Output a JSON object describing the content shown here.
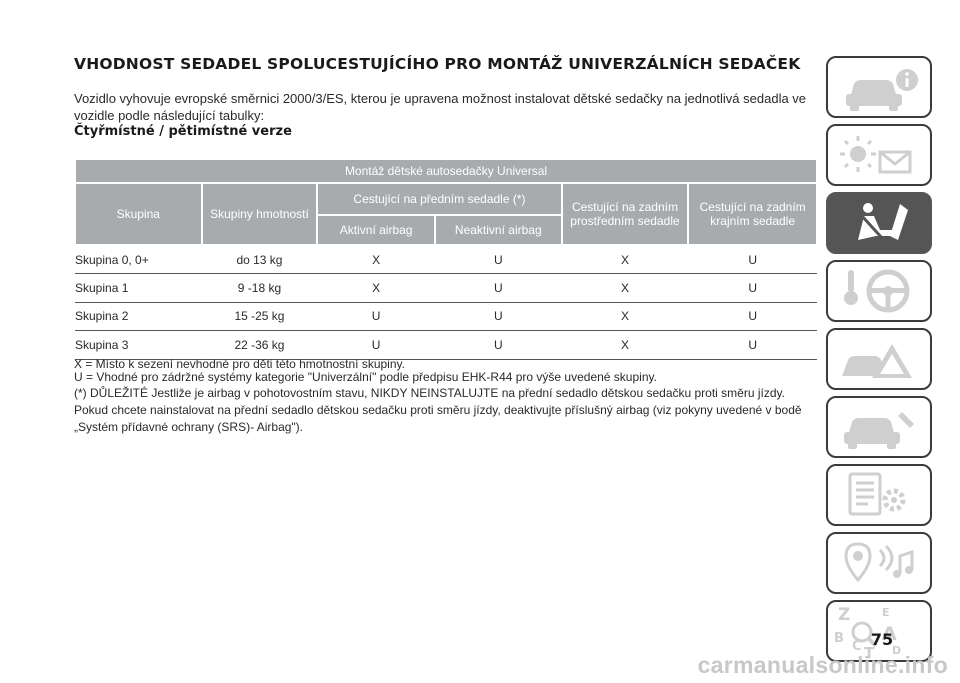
{
  "heading": "VHODNOST SEDADEL SPOLUCESTUJÍCÍHO PRO MONTÁŽ UNIVERZÁLNÍCH SEDAČEK",
  "intro": "Vozidlo vyhovuje evropské směrnici 2000/3/ES, kterou je upravena možnost instalovat dětské sedačky na jednotlivá sedadla ve vozidle podle následující tabulky:",
  "subheading": "Čtyřmístné / pětimístné verze",
  "table": {
    "title": "Montáž dětské autosedačky Universal",
    "col_group": "Skupina",
    "col_weight": "Skupiny hmotností",
    "col_front": "Cestující na předním sedadle (*)",
    "col_front_active": "Aktivní airbag",
    "col_front_inactive": "Neaktivní airbag",
    "col_rear_center": "Cestující na zadním prostředním sedadle",
    "col_rear_side": "Cestující na zadním krajním sedadle",
    "rows": [
      {
        "group": "Skupina 0, 0+",
        "weight": "do 13 kg",
        "front_active": "X",
        "front_inactive": "U",
        "rear_center": "X",
        "rear_side": "U"
      },
      {
        "group": "Skupina 1",
        "weight": "9 -18 kg",
        "front_active": "X",
        "front_inactive": "U",
        "rear_center": "X",
        "rear_side": "U"
      },
      {
        "group": "Skupina 2",
        "weight": "15 -25 kg",
        "front_active": "U",
        "front_inactive": "U",
        "rear_center": "X",
        "rear_side": "U"
      },
      {
        "group": "Skupina 3",
        "weight": "22 -36 kg",
        "front_active": "U",
        "front_inactive": "U",
        "rear_center": "X",
        "rear_side": "U"
      }
    ]
  },
  "notes": {
    "x_note": "X = Místo k sezení nevhodné pro děti této hmotnostní skupiny.",
    "u_note": "U = Vhodné pro zádržné systémy kategorie \"Univerzální\" podle předpisu EHK-R44 pro výše uvedené skupiny.",
    "important": "(*) DŮLEŽITÉ Jestliže je airbag v pohotovostním stavu, NIKDY NEINSTALUJTE na přední sedadlo dětskou sedačku proti směru jízdy. Pokud chcete nainstalovat na přední sedadlo dětskou sedačku proti směru jízdy, deaktivujte příslušný airbag (viz pokyny uvedené v bodě „Systém přídavné ochrany (SRS)- Airbag\")."
  },
  "sidebar": {
    "tabs": [
      {
        "name": "car-info-icon",
        "active": false
      },
      {
        "name": "warning-lights-icon",
        "active": false
      },
      {
        "name": "safety-seatbelt-icon",
        "active": true
      },
      {
        "name": "starting-driving-icon",
        "active": false
      },
      {
        "name": "emergency-icon",
        "active": false
      },
      {
        "name": "maintenance-icon",
        "active": false
      },
      {
        "name": "technical-data-icon",
        "active": false
      },
      {
        "name": "multimedia-icon",
        "active": false
      },
      {
        "name": "index-icon",
        "active": false
      }
    ],
    "index_letters": {
      "z": "Z",
      "e": "E",
      "b": "B",
      "a": "A",
      "c": "C",
      "d": "D",
      "t": "T"
    }
  },
  "page_number": "75",
  "watermark": "carmanualsonline.info",
  "colors": {
    "header_bg": "#a8abad",
    "sidebar_active": "#555555",
    "tab_border": "#3b3b3b",
    "watermark": "#c8c8c8"
  }
}
